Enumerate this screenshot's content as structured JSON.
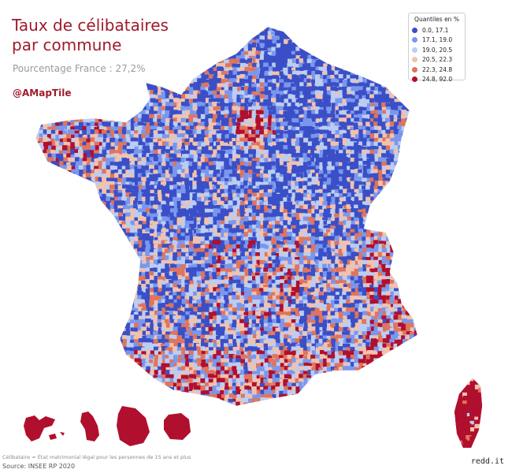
{
  "header": {
    "title_line1": "Taux de célibataires",
    "title_line2": "par commune",
    "subtitle": "Pourcentage France : 27,2%",
    "handle": "@AMapTile"
  },
  "legend": {
    "title": "Quantiles en %",
    "items": [
      {
        "label": "0.0, 17.1",
        "color": "#3a4fc7"
      },
      {
        "label": "17.1, 19.0",
        "color": "#7a97ee"
      },
      {
        "label": "19.0, 20.5",
        "color": "#bccdf1"
      },
      {
        "label": "20.5, 22.3",
        "color": "#f1c2ad"
      },
      {
        "label": "22.3, 24.8",
        "color": "#e0745d"
      },
      {
        "label": "24.8, 92.0",
        "color": "#b10f2e"
      }
    ]
  },
  "footer": {
    "footnote": "Célibataire = État matrimonial légal pour les personnes de 15 ans et plus",
    "source": "Source: INSEE RP 2020",
    "credit": "redd.it"
  },
  "map": {
    "regions": [
      "France métropolitaine",
      "Corse",
      "Guadeloupe",
      "Martinique",
      "Guyane",
      "La Réunion"
    ],
    "dominant_colors": {
      "low": "#3a4fc7",
      "high": "#b10f2e",
      "background": "#ffffff"
    }
  }
}
